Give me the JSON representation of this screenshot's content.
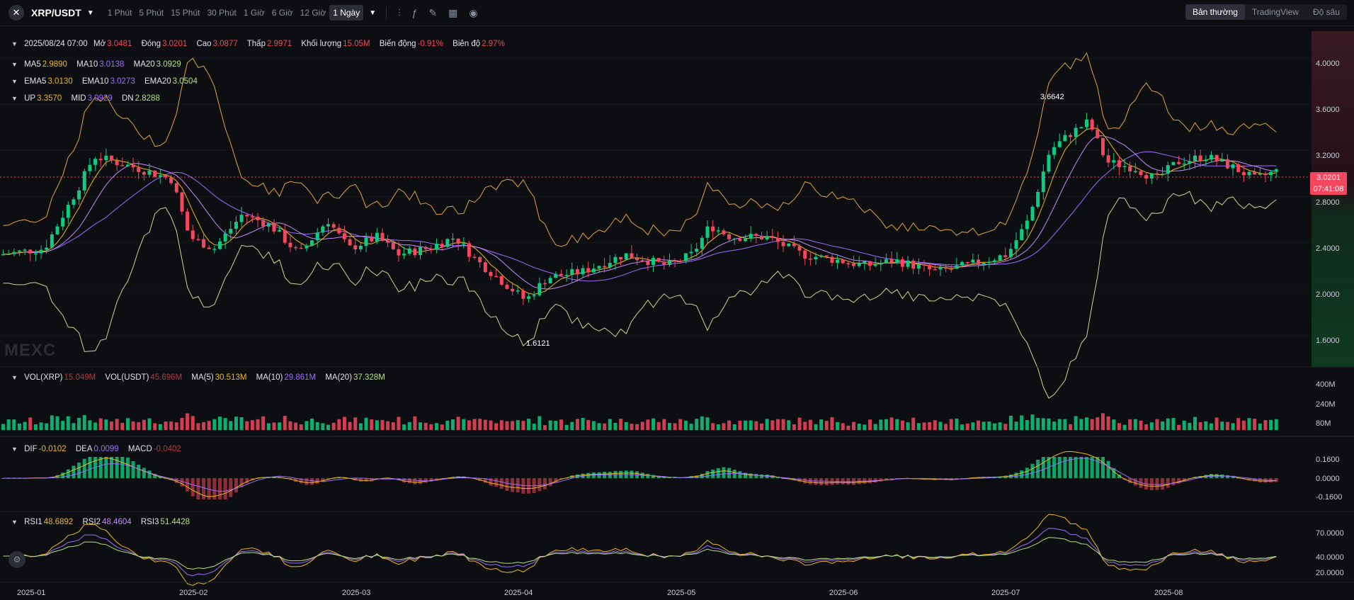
{
  "toolbar": {
    "symbol": "XRP/USDT",
    "timeframes": [
      "1 Phút",
      "5 Phút",
      "15 Phút",
      "30 Phút",
      "1 Giờ",
      "6 Giờ",
      "12 Giờ",
      "1 Ngày"
    ],
    "active_timeframe": "1 Ngày",
    "views": [
      "Bản thường",
      "TradingView",
      "Độ sâu"
    ],
    "active_view": "Bản thường"
  },
  "ohlc": {
    "date": "2025/08/24 07:00",
    "open_label": "Mở",
    "open": "3.0481",
    "close_label": "Đóng",
    "close": "3.0201",
    "high_label": "Cao",
    "high": "3.0877",
    "low_label": "Thấp",
    "low": "2.9971",
    "volume_label": "Khối lượng",
    "volume": "15.05M",
    "change_label": "Biến động",
    "change": "-0.91%",
    "amplitude_label": "Biên độ",
    "amplitude": "2.97%"
  },
  "ma": {
    "ma5_label": "MA5",
    "ma5": "2.9890",
    "ma10_label": "MA10",
    "ma10": "3.0138",
    "ma20_label": "MA20",
    "ma20": "3.0929"
  },
  "ema": {
    "ema5_label": "EMA5",
    "ema5": "3.0130",
    "ema10_label": "EMA10",
    "ema10": "3.0273",
    "ema20_label": "EMA20",
    "ema20": "3.0504"
  },
  "boll": {
    "up_label": "UP",
    "up": "3.3570",
    "mid_label": "MID",
    "mid": "3.0929",
    "dn_label": "DN",
    "dn": "2.8288"
  },
  "price_axis": [
    "4.0000",
    "3.6000",
    "3.2000",
    "2.8000",
    "2.4000",
    "2.0000",
    "1.6000"
  ],
  "current_price": "3.0201",
  "countdown": "07:41:08",
  "high_marker": "3.6642",
  "low_marker": "1.6121",
  "watermark": "MEXC",
  "volume": {
    "vol_xrp_label": "VOL(XRP)",
    "vol_xrp": "15.049M",
    "vol_usdt_label": "VOL(USDT)",
    "vol_usdt": "45.696M",
    "ma5_label": "MA(5)",
    "ma5": "30.513M",
    "ma10_label": "MA(10)",
    "ma10": "29.861M",
    "ma20_label": "MA(20)",
    "ma20": "37.328M",
    "axis": [
      "400M",
      "240M",
      "80M"
    ]
  },
  "macd": {
    "dif_label": "DIF",
    "dif": "-0.0102",
    "dea_label": "DEA",
    "dea": "0.0099",
    "macd_label": "MACD",
    "macd": "-0.0402",
    "axis": [
      "0.1600",
      "0.0000",
      "-0.1600"
    ]
  },
  "rsi": {
    "rsi1_label": "RSI1",
    "rsi1": "48.6892",
    "rsi2_label": "RSI2",
    "rsi2": "48.4604",
    "rsi3_label": "RSI3",
    "rsi3": "51.4428",
    "axis": [
      "70.0000",
      "40.0000",
      "20.0000"
    ]
  },
  "time_axis": [
    "2025-01",
    "2025-02",
    "2025-03",
    "2025-04",
    "2025-05",
    "2025-06",
    "2025-07",
    "2025-08"
  ],
  "colors": {
    "up": "#0ecb81",
    "down": "#f6465d",
    "background": "#0d0e12"
  },
  "chart_data": {
    "type": "candlestick",
    "title": "XRP/USDT",
    "ylim": [
      1.5,
      4.2
    ],
    "x": [
      "2025-01",
      "2025-02",
      "2025-03",
      "2025-04",
      "2025-05",
      "2025-06",
      "2025-07",
      "2025-08"
    ],
    "series": [
      {
        "name": "close",
        "values": [
          2.45,
          3.1,
          2.4,
          2.15,
          2.25,
          2.15,
          3.55,
          3.02
        ]
      }
    ]
  }
}
